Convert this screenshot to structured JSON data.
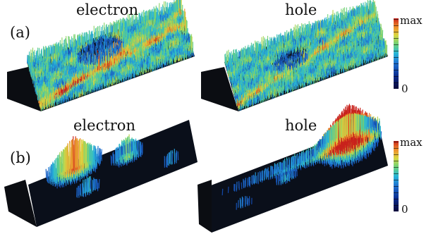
{
  "row_a": {
    "label": "(a)",
    "left_title": "electron",
    "right_title": "hole",
    "colorbar": {
      "max_label": "max",
      "min_label": "0"
    }
  },
  "row_b": {
    "label": "(b)",
    "left_title": "electron",
    "right_title": "hole",
    "colorbar": {
      "max_label": "max",
      "min_label": "0"
    }
  },
  "colormap": [
    "#08083a",
    "#0a2a8c",
    "#1f6fd0",
    "#27b6d8",
    "#6ad27a",
    "#d9d640",
    "#f08a2a",
    "#c8221c"
  ]
}
